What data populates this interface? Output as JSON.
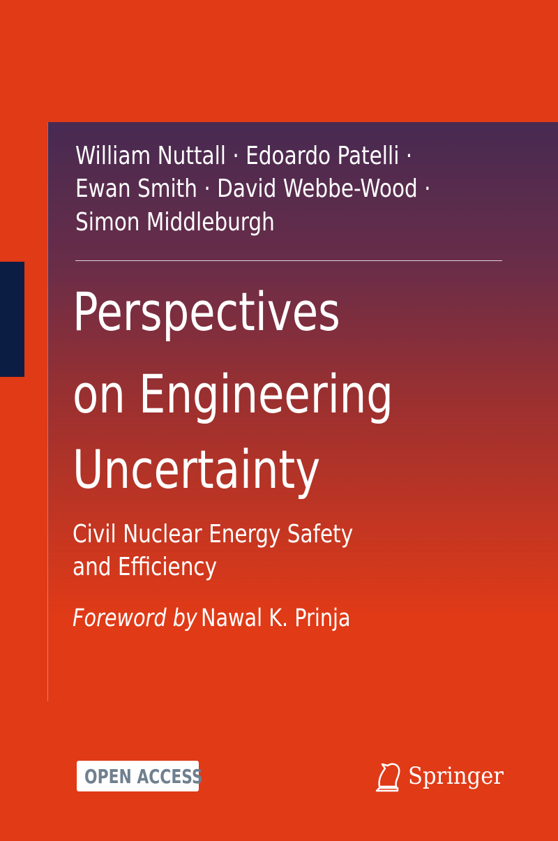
{
  "authors_lines": [
    "William Nuttall · Edoardo Patelli ·",
    "Ewan Smith · David Webbe-Wood ·",
    "Simon Middleburgh"
  ],
  "title_lines": [
    "Perspectives",
    "on Engineering",
    "Uncertainty"
  ],
  "subtitle_lines": [
    "Civil Nuclear Energy Safety",
    "and Efficiency"
  ],
  "foreword": {
    "label": "Foreword by",
    "name": "Nawal K. Prinja"
  },
  "badge": "OPEN ACCESS",
  "publisher": "Springer"
}
